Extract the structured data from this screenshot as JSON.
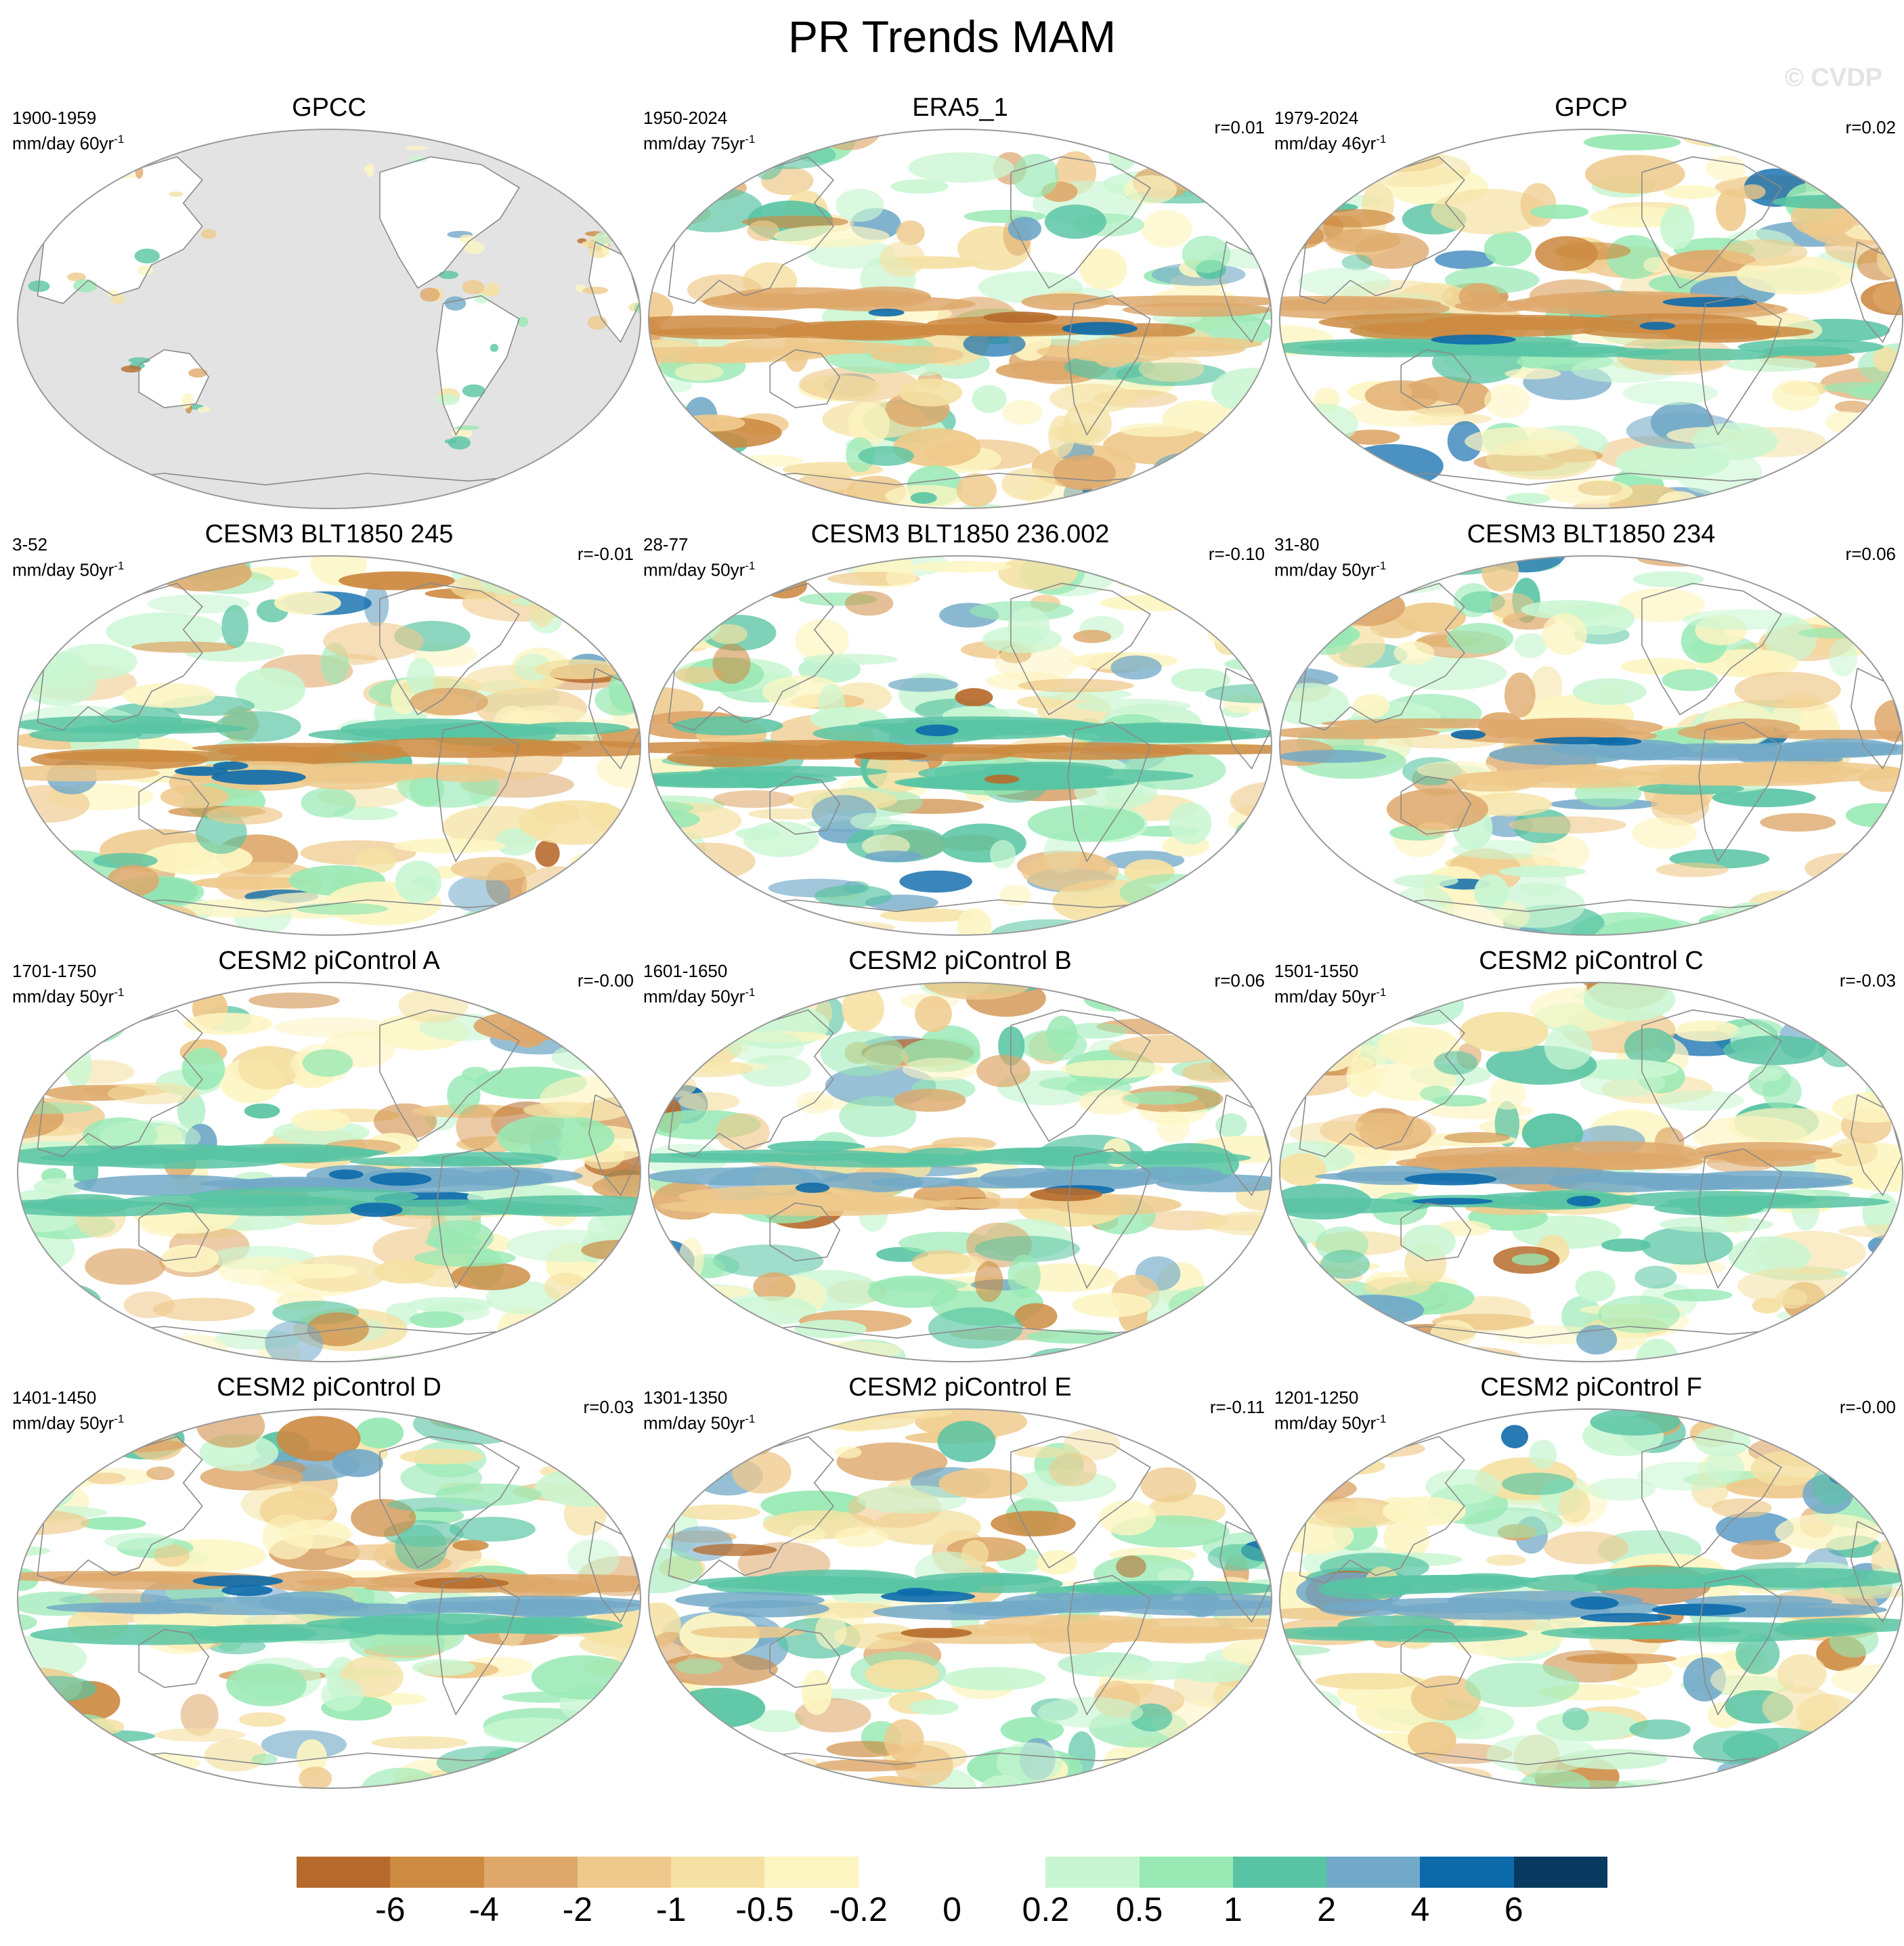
{
  "title": "PR Trends MAM",
  "watermark": "© CVDP",
  "colors": {
    "land_no_data": "#e3e3e3",
    "coast": "#8a8a8a",
    "outline": "#9a9a9a"
  },
  "panels": [
    {
      "title": "GPCC",
      "period": "1900-1959",
      "units_base": "mm/day 60yr",
      "units_exp": "-1",
      "r": "",
      "land_masked": true
    },
    {
      "title": "ERA5_1",
      "period": "1950-2024",
      "units_base": "mm/day 75yr",
      "units_exp": "-1",
      "r": "r=0.01",
      "land_masked": false
    },
    {
      "title": "GPCP",
      "period": "1979-2024",
      "units_base": "mm/day 46yr",
      "units_exp": "-1",
      "r": "r=0.02",
      "land_masked": false
    },
    {
      "title": "CESM3 BLT1850 245",
      "period": "3-52",
      "units_base": "mm/day 50yr",
      "units_exp": "-1",
      "r": "r=-0.01",
      "land_masked": false
    },
    {
      "title": "CESM3 BLT1850 236.002",
      "period": "28-77",
      "units_base": "mm/day 50yr",
      "units_exp": "-1",
      "r": "r=-0.10",
      "land_masked": false
    },
    {
      "title": "CESM3 BLT1850 234",
      "period": "31-80",
      "units_base": "mm/day 50yr",
      "units_exp": "-1",
      "r": "r=0.06",
      "land_masked": false
    },
    {
      "title": "CESM2 piControl A",
      "period": "1701-1750",
      "units_base": "mm/day 50yr",
      "units_exp": "-1",
      "r": "r=-0.00",
      "land_masked": false
    },
    {
      "title": "CESM2 piControl B",
      "period": "1601-1650",
      "units_base": "mm/day 50yr",
      "units_exp": "-1",
      "r": "r=0.06",
      "land_masked": false
    },
    {
      "title": "CESM2 piControl C",
      "period": "1501-1550",
      "units_base": "mm/day 50yr",
      "units_exp": "-1",
      "r": "r=-0.03",
      "land_masked": false
    },
    {
      "title": "CESM2 piControl D",
      "period": "1401-1450",
      "units_base": "mm/day 50yr",
      "units_exp": "-1",
      "r": "r=0.03",
      "land_masked": false
    },
    {
      "title": "CESM2 piControl E",
      "period": "1301-1350",
      "units_base": "mm/day 50yr",
      "units_exp": "-1",
      "r": "r=-0.11",
      "land_masked": false
    },
    {
      "title": "CESM2 piControl F",
      "period": "1201-1250",
      "units_base": "mm/day 50yr",
      "units_exp": "-1",
      "r": "r=-0.00",
      "land_masked": false
    }
  ],
  "colorbar": {
    "colors": [
      "#b66a2b",
      "#cd8a41",
      "#dea86b",
      "#efc98b",
      "#f5e1a3",
      "#fdf5c2",
      "#ffffff",
      "#ffffff",
      "#c9f6d2",
      "#98e9b4",
      "#58c4a3",
      "#72a9c8",
      "#0c6aab",
      "#073a5e"
    ],
    "labels": [
      "-6",
      "-4",
      "-2",
      "-1",
      "-0.5",
      "-0.2",
      "0",
      "0.2",
      "0.5",
      "1",
      "2",
      "4",
      "6"
    ]
  }
}
